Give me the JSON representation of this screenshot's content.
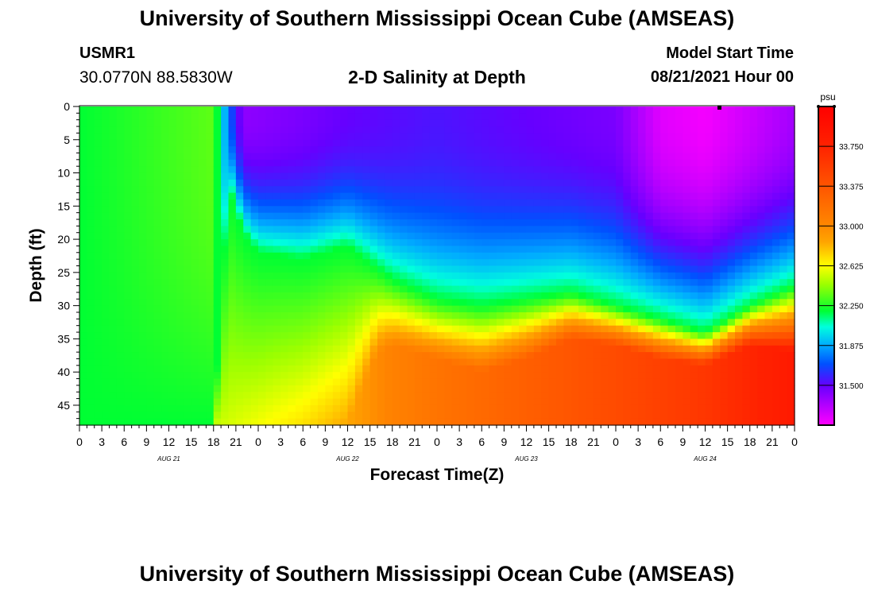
{
  "header": {
    "title": "University of Southern Mississippi Ocean Cube (AMSEAS)",
    "station_id": "USMR1",
    "coords": "30.0770N  88.5830W",
    "plot_title": "2-D Salinity at Depth",
    "model_start_label": "Model Start Time",
    "model_start_value": "08/21/2021 Hour 00"
  },
  "footer": {
    "title": "University of Southern Mississippi Ocean Cube (AMSEAS)"
  },
  "chart_data": {
    "type": "heatmap",
    "title": "2-D Salinity at Depth",
    "xlabel": "Forecast Time(Z)",
    "ylabel": "Depth (ft)",
    "x_hours_range": [
      0,
      96
    ],
    "x_tick_step_hours": 3,
    "x_tick_labels": [
      "0",
      "3",
      "6",
      "9",
      "12",
      "15",
      "18",
      "21",
      "0",
      "3",
      "6",
      "9",
      "12",
      "15",
      "18",
      "21",
      "0",
      "3",
      "6",
      "9",
      "12",
      "15",
      "18",
      "21",
      "0",
      "3",
      "6",
      "9",
      "12",
      "15",
      "18",
      "21",
      "0"
    ],
    "day_labels": [
      {
        "label": "AUG 21",
        "hour": 12
      },
      {
        "label": "AUG 22",
        "hour": 36
      },
      {
        "label": "AUG 23",
        "hour": 60
      },
      {
        "label": "AUG 24",
        "hour": 84
      }
    ],
    "y_range_ft": [
      0,
      48
    ],
    "y_tick_values": [
      0,
      5,
      10,
      15,
      20,
      25,
      30,
      35,
      40,
      45
    ],
    "colorbar": {
      "unit": "psu",
      "range": [
        31.125,
        34.125
      ],
      "tick_values": [
        31.5,
        31.875,
        32.25,
        32.625,
        33.0,
        33.375,
        33.75
      ],
      "tick_labels": [
        "31.500",
        "31.875",
        "32.250",
        "32.625",
        "33.000",
        "33.375",
        "33.750"
      ],
      "color_stops": [
        {
          "v": 31.125,
          "c": "#ff00ff"
        },
        {
          "v": 31.5,
          "c": "#6600ff"
        },
        {
          "v": 31.7,
          "c": "#0050ff"
        },
        {
          "v": 31.875,
          "c": "#00aaff"
        },
        {
          "v": 32.05,
          "c": "#00ffdd"
        },
        {
          "v": 32.2,
          "c": "#00ff33"
        },
        {
          "v": 32.45,
          "c": "#9cff00"
        },
        {
          "v": 32.625,
          "c": "#ffff00"
        },
        {
          "v": 32.85,
          "c": "#ffa500"
        },
        {
          "v": 33.0,
          "c": "#ff8800"
        },
        {
          "v": 33.375,
          "c": "#ff5500"
        },
        {
          "v": 33.75,
          "c": "#ff2200"
        },
        {
          "v": 34.125,
          "c": "#ff0000"
        }
      ]
    },
    "surface_series": {
      "hours": [
        0,
        12,
        18,
        20,
        22,
        30,
        36,
        48,
        60,
        72,
        78,
        84,
        96
      ],
      "salinity": [
        32.2,
        32.3,
        32.35,
        31.75,
        31.4,
        31.45,
        31.5,
        31.55,
        31.5,
        31.45,
        31.2,
        31.15,
        31.35
      ]
    },
    "halocline_upper_depth_ft": {
      "hours": [
        0,
        18,
        20,
        22,
        24,
        30,
        36,
        42,
        48,
        54,
        60,
        66,
        72,
        78,
        84,
        90,
        96
      ],
      "depth": [
        48,
        48,
        12,
        19,
        22,
        23,
        21,
        26,
        29,
        30,
        29,
        28,
        30,
        32,
        34,
        30,
        27
      ]
    },
    "halocline_lower_depth_ft": {
      "hours": [
        0,
        36,
        40,
        42,
        48,
        54,
        60,
        66,
        72,
        78,
        84,
        90,
        96
      ],
      "depth": [
        48,
        48,
        37,
        36,
        38,
        40,
        38,
        35,
        36,
        38,
        39,
        36,
        37
      ]
    },
    "deep_series": {
      "hours": [
        0,
        10,
        20,
        30,
        36,
        42,
        48,
        60,
        72,
        84,
        96
      ],
      "salinity": [
        32.35,
        32.45,
        32.55,
        32.7,
        32.85,
        33.05,
        33.15,
        33.3,
        33.45,
        33.6,
        33.85
      ]
    }
  }
}
